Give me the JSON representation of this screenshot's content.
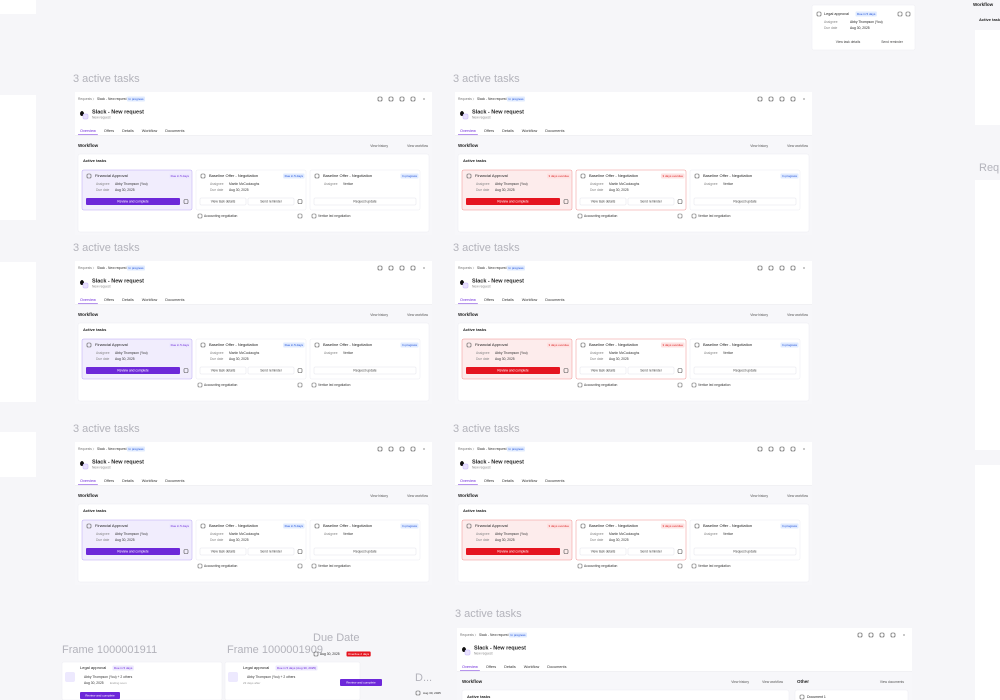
{
  "frames": [
    {
      "label": "3 active tasks",
      "variant": "default"
    },
    {
      "label": "3 active tasks",
      "variant": "overdue"
    },
    {
      "label": "3 active tasks",
      "variant": "default"
    },
    {
      "label": "3 active tasks",
      "variant": "overdue"
    },
    {
      "label": "3 active tasks",
      "variant": "default"
    },
    {
      "label": "3 active tasks",
      "variant": "overdue"
    }
  ],
  "designs": {
    "default": {
      "breadcrumb": [
        "Requests",
        "Slack - New request"
      ],
      "status": "In progress",
      "title": "Slack - New request",
      "subtitle": "New request",
      "tabs": [
        "Overview",
        "Offers",
        "Details",
        "Workflow",
        "Documents"
      ],
      "section": "Workflow",
      "actions": [
        "View history",
        "View workflow"
      ],
      "card_title": "Active tasks",
      "tasks": [
        {
          "title": "Financial Approval",
          "badge": "Due in 5 days",
          "fields": [
            {
              "label": "Assignee",
              "value": "Abby Thompson (You)"
            },
            {
              "label": "Due date",
              "value": "Aug 30, 2025"
            }
          ],
          "buttons": [
            "Review and complete"
          ]
        },
        {
          "title": "Baseline Offer - Negotiation",
          "badge": "Due in 5 days",
          "fields": [
            {
              "label": "Assignee",
              "value": "Martin McCoolaughs"
            },
            {
              "label": "Due date",
              "value": "Aug 30, 2025"
            }
          ],
          "buttons": [
            "View task details",
            "Send reminder"
          ],
          "footer": "Accounting negotiation"
        },
        {
          "title": "Baseline Offer - Negotiation",
          "badge": "In progress",
          "fields": [
            {
              "label": "Assignee",
              "value": "Vertice"
            }
          ],
          "buttons": [
            "Request update"
          ],
          "footer": "Vertice led negotiation"
        }
      ]
    },
    "overdue": {
      "breadcrumb": [
        "Requests",
        "Slack - New request"
      ],
      "status": "In progress",
      "title": "Slack - New request",
      "subtitle": "New request",
      "tabs": [
        "Overview",
        "Offers",
        "Details",
        "Workflow",
        "Documents"
      ],
      "section": "Workflow",
      "actions": [
        "View history",
        "View workflow"
      ],
      "card_title": "Active tasks",
      "tasks": [
        {
          "title": "Financial Approval",
          "badge": "3 days overdue",
          "fields": [
            {
              "label": "Assignee",
              "value": "Abby Thompson (You)"
            },
            {
              "label": "Due date",
              "value": "Aug 30, 2025"
            }
          ],
          "buttons": [
            "Review and complete"
          ]
        },
        {
          "title": "Baseline Offer - Negotiation",
          "badge": "3 days overdue",
          "fields": [
            {
              "label": "Assignee",
              "value": "Martin McCoolaughs"
            },
            {
              "label": "Due date",
              "value": "Aug 30, 2025"
            }
          ],
          "buttons": [
            "View task details",
            "Send reminder"
          ],
          "footer": "Accounting negotiation"
        },
        {
          "title": "Baseline Offer - Negotiation",
          "badge": "In progress",
          "fields": [
            {
              "label": "Assignee",
              "value": "Vertice"
            }
          ],
          "buttons": [
            "Request update"
          ],
          "footer": "Vertice led negotiation"
        }
      ]
    }
  },
  "legal_card": {
    "title": "Legal approval",
    "badge": "Due in 5 days",
    "fields": [
      {
        "label": "Assignee",
        "value": "Abby Thompson (You)"
      },
      {
        "label": "Due date",
        "value": "Aug 30, 2025"
      }
    ],
    "buttons": [
      "View task details",
      "Send reminder"
    ]
  },
  "layer_labels": [
    "Frame 1000001911",
    "Frame 1000001909",
    "Due Date",
    "Frame 1000001912",
    "Frame 1000001915",
    "D..."
  ],
  "mini_cards": [
    {
      "title": "Legal approval",
      "badge": "Due in 5 days",
      "assignee": "Abby Thompson (You) + 2 others",
      "date": "Aug 30, 2025",
      "note": "Ending soon",
      "button": "Review and complete"
    },
    {
      "title": "Legal approval",
      "badge": "Due in 5 days (Aug 30, 2025)",
      "assignee": "Abby Thompson (You) + 2 others",
      "note": "23 days after",
      "button": "Review and complete"
    }
  ],
  "due_date_chip": {
    "date": "Aug 30, 2025",
    "badge": "Overdue 2 days",
    "date2": "Aug 30, 2025"
  },
  "wide_frame": {
    "label": "3 active tasks",
    "other": "Other",
    "other_action": "View documents",
    "document": "Document 1"
  },
  "edge_texts": [
    "Workflow",
    "Active tasks",
    "Req"
  ]
}
